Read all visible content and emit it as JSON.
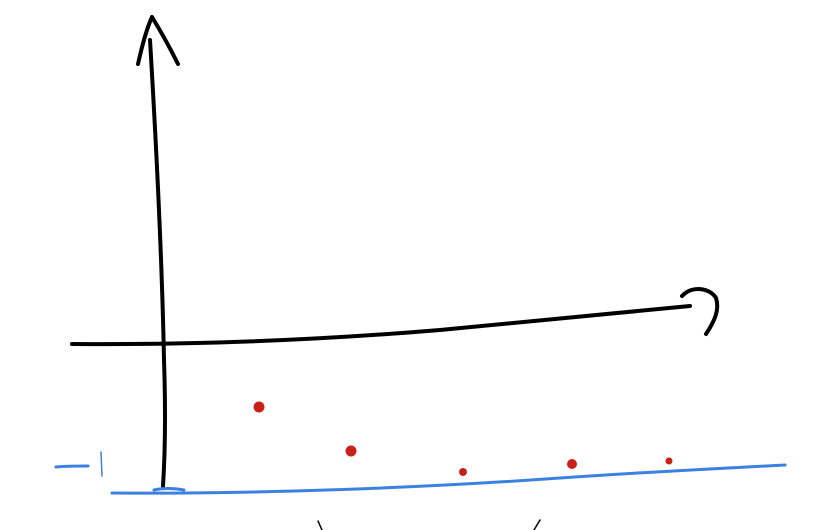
{
  "colors": {
    "background": "#ffffff",
    "axis_ink": "#000000",
    "baseline_ink": "#3b82e0",
    "point_ink": "#c8201a"
  },
  "icons": {
    "y_axis_arrow": "arrowhead-up-icon",
    "x_axis_arrow": "arrowhead-right-icon"
  },
  "sketch": {
    "data_points_count": 5,
    "baseline_has_tick_mark": true
  }
}
